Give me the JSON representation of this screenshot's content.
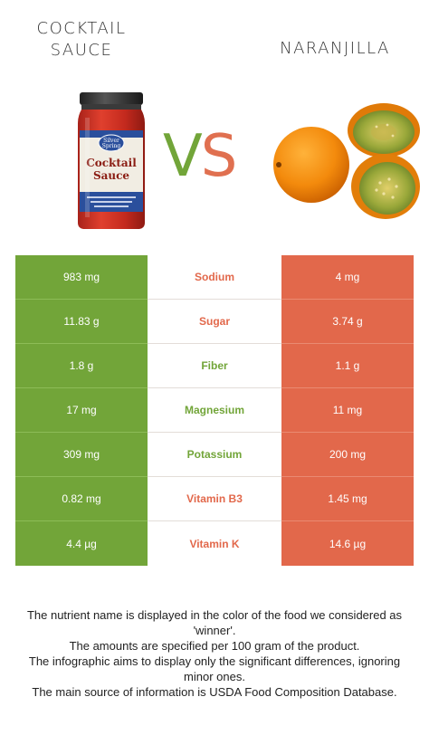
{
  "left_food": {
    "title_lines": [
      "COCKTAIL",
      "SAUCE"
    ],
    "label_lines": [
      "Silver",
      "Spring",
      "Cocktail",
      "Sauce"
    ]
  },
  "right_food": {
    "title_lines": [
      "NARANJILLA"
    ]
  },
  "vs": {
    "v": "V",
    "s": "S"
  },
  "colors": {
    "left": "#72a539",
    "right": "#e2684b"
  },
  "nutrients": [
    {
      "name": "Sodium",
      "left": "983 mg",
      "right": "4 mg",
      "winner": "right"
    },
    {
      "name": "Sugar",
      "left": "11.83 g",
      "right": "3.74 g",
      "winner": "right"
    },
    {
      "name": "Fiber",
      "left": "1.8 g",
      "right": "1.1 g",
      "winner": "left"
    },
    {
      "name": "Magnesium",
      "left": "17 mg",
      "right": "11 mg",
      "winner": "left"
    },
    {
      "name": "Potassium",
      "left": "309 mg",
      "right": "200 mg",
      "winner": "left"
    },
    {
      "name": "Vitamin B3",
      "left": "0.82 mg",
      "right": "1.45 mg",
      "winner": "right"
    },
    {
      "name": "Vitamin K",
      "left": "4.4 µg",
      "right": "14.6 µg",
      "winner": "right"
    }
  ],
  "footnote": [
    "The nutrient name is displayed in the color of the food we considered as 'winner'.",
    "The amounts are specified per 100 gram of the product.",
    "The infographic aims to display only the significant differences, ignoring minor ones.",
    "The main source of information is USDA Food Composition Database."
  ]
}
